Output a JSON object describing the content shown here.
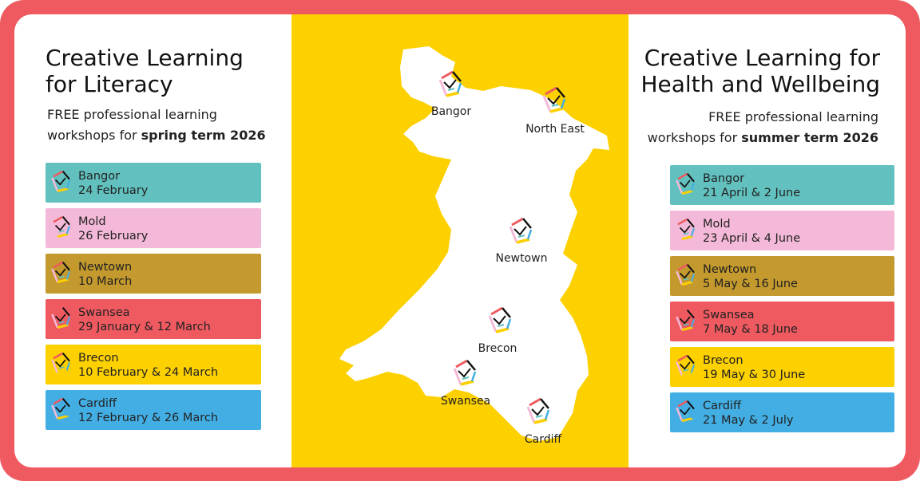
{
  "left": {
    "title_lines": [
      "Creative Learning",
      "for Literacy"
    ],
    "subtitle": {
      "line1": "FREE professional learning",
      "line2": "workshops for",
      "term": "spring term 2026"
    },
    "items": [
      {
        "location": "Bangor",
        "dates": "24 February",
        "color": "#62c1bf"
      },
      {
        "location": "Mold",
        "dates": "26 February",
        "color": "#f4b9d8"
      },
      {
        "location": "Newtown",
        "dates": "10 March",
        "color": "#c4992d"
      },
      {
        "location": "Swansea",
        "dates": "29 January & 12 March",
        "color": "#ee5a60"
      },
      {
        "location": "Brecon",
        "dates": "10 February & 24 March",
        "color": "#fdd000"
      },
      {
        "location": "Cardiff",
        "dates": "12 February & 26 March",
        "color": "#42aee4"
      }
    ]
  },
  "map": {
    "labels": [
      "Bangor",
      "North East",
      "Newtown",
      "Brecon",
      "Swansea",
      "Cardiff"
    ]
  },
  "right": {
    "title_lines": [
      "Creative Learning for",
      "Health and Wellbeing"
    ],
    "subtitle": {
      "line1": "FREE professional learning",
      "line2": "workshops for",
      "term": "summer term 2026"
    },
    "items": [
      {
        "location": "Bangor",
        "dates": "21 April & 2 June",
        "color": "#62c1bf"
      },
      {
        "location": "Mold",
        "dates": "23 April & 4 June",
        "color": "#f4b9d8"
      },
      {
        "location": "Newtown",
        "dates": "5 May & 16 June",
        "color": "#c4992d"
      },
      {
        "location": "Swansea",
        "dates": "7 May & 18 June",
        "color": "#ee5a60"
      },
      {
        "location": "Brecon",
        "dates": "19 May & 30 June",
        "color": "#fdd000"
      },
      {
        "location": "Cardiff",
        "dates": "21 May & 2 July",
        "color": "#42aee4"
      }
    ]
  }
}
